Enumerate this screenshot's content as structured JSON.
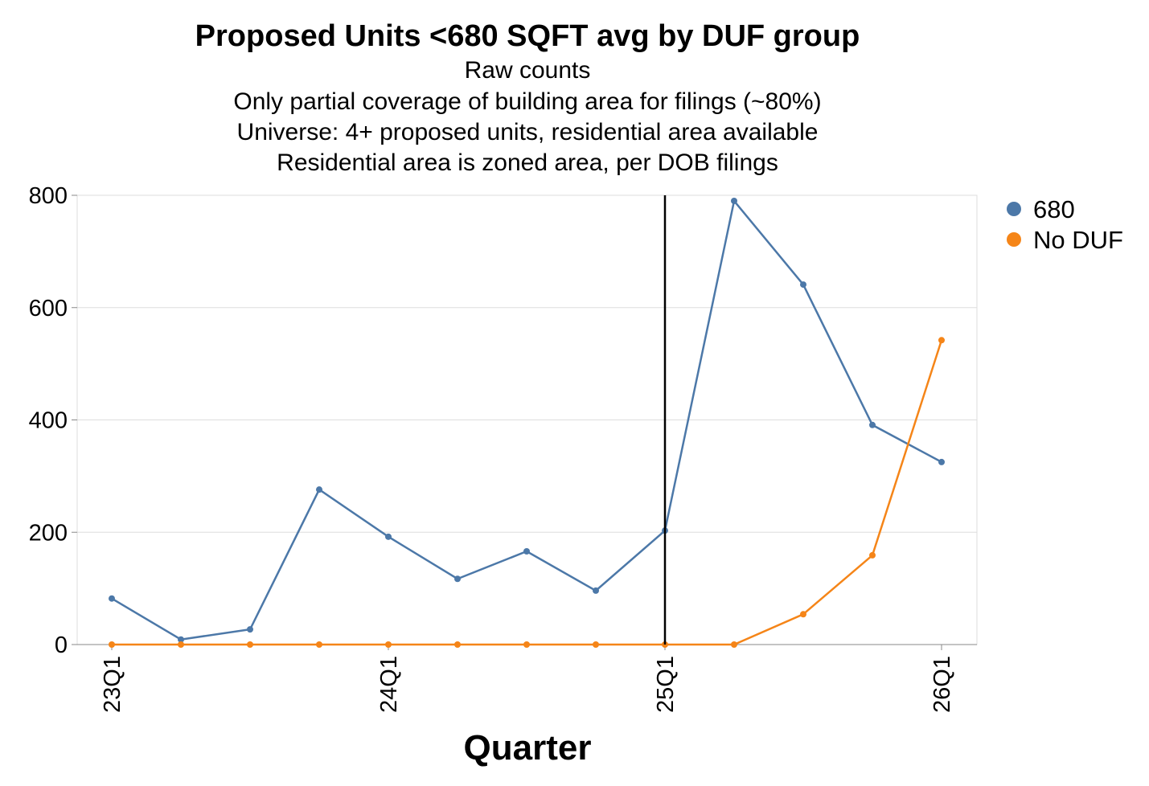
{
  "chart_data": {
    "type": "line",
    "title": "Proposed Units <680 SQFT avg by DUF group",
    "subtitle": [
      "Raw counts",
      "Only partial coverage of building area for filings (~80%)",
      "Universe: 4+ proposed units, residential area available",
      "Residential area is zoned area, per DOB filings"
    ],
    "xlabel": "Quarter",
    "ylabel": "",
    "x": [
      "23Q1",
      "23Q2",
      "23Q3",
      "23Q4",
      "24Q1",
      "24Q2",
      "24Q3",
      "24Q4",
      "25Q1",
      "25Q2",
      "25Q3",
      "25Q4",
      "26Q1"
    ],
    "x_tick_labels": [
      "23Q1",
      "24Q1",
      "25Q1",
      "26Q1"
    ],
    "ylim": [
      0,
      800
    ],
    "y_ticks": [
      0,
      200,
      400,
      600,
      800
    ],
    "grid": true,
    "legend_position": "top-right",
    "vertical_rule_at": "25Q1",
    "series": [
      {
        "name": "680",
        "color": "#4c78a8",
        "values": [
          82,
          9,
          27,
          276,
          192,
          117,
          166,
          96,
          203,
          790,
          641,
          391,
          325
        ]
      },
      {
        "name": "No DUF",
        "color": "#f58518",
        "values": [
          0,
          0,
          0,
          0,
          0,
          0,
          0,
          0,
          0,
          0,
          54,
          159,
          542
        ]
      }
    ]
  }
}
